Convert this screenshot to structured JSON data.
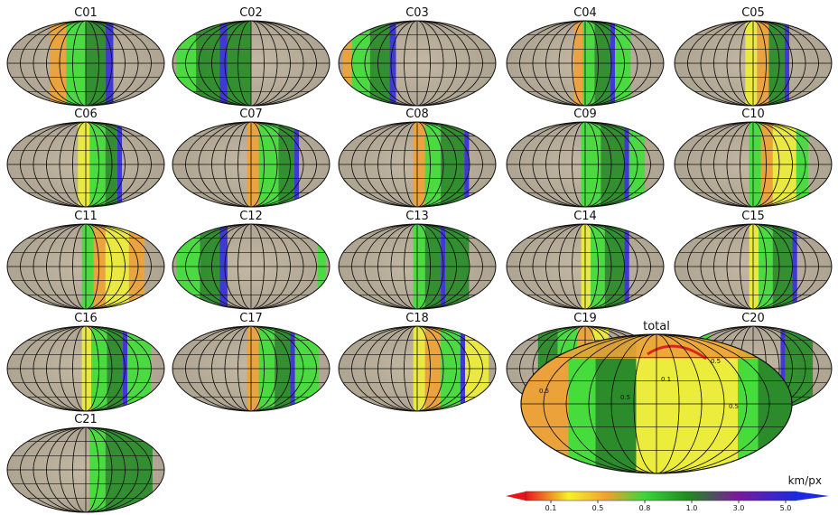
{
  "figure": {
    "panels": [
      "C01",
      "C02",
      "C03",
      "C04",
      "C05",
      "C06",
      "C07",
      "C08",
      "C09",
      "C10",
      "C11",
      "C12",
      "C13",
      "C14",
      "C15",
      "C16",
      "C17",
      "C18",
      "C19",
      "C20",
      "C21"
    ],
    "total_title": "total",
    "total_contour_labels": [
      "0.5",
      "0.5",
      "0.1",
      "0.5",
      "0.5"
    ],
    "colorbar": {
      "unit": "km/px",
      "ticks": [
        "0.1",
        "0.5",
        "0.8",
        "1.0",
        "3.0",
        "5.0"
      ],
      "colors": [
        "#e8141c",
        "#f4f22a",
        "#f0a030",
        "#3ad63a",
        "#1f8a1f",
        "#7a1a9a",
        "#1a2ae0"
      ]
    },
    "legend_colors": {
      "base": "#b9ad98",
      "yellow": "#ecec3c",
      "orange": "#eca23a",
      "light_green": "#46dc3c",
      "dark_green": "#2c8c2c",
      "blue": "#3a32d8",
      "red": "#d8281c"
    }
  }
}
